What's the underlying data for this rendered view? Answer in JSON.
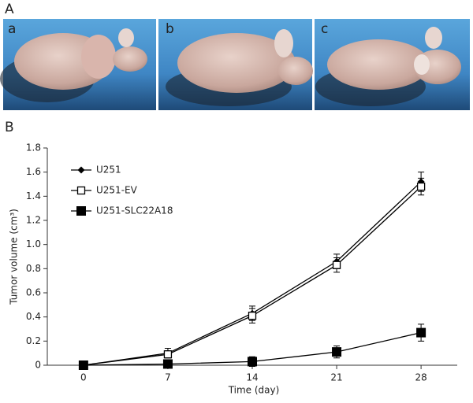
{
  "figure": {
    "panel_a_label": "A",
    "photo_labels": [
      "a",
      "b",
      "c"
    ],
    "panel_b_label": "B"
  },
  "chart_data": {
    "type": "line",
    "x_label": "Time (day)",
    "y_label": "Tumor volume (cm³)",
    "x": [
      0,
      7,
      14,
      21,
      28
    ],
    "xlim": [
      -3,
      31
    ],
    "xticks": [
      0,
      7,
      14,
      21,
      28
    ],
    "ylim": [
      0,
      1.8
    ],
    "yticks": [
      0,
      0.2,
      0.4,
      0.6,
      0.8,
      {
        "value": 1,
        "label": "1.0"
      },
      1.2,
      1.4,
      1.6,
      1.8
    ],
    "legend": "upper left",
    "series": [
      {
        "name": "U251",
        "color": "#000000",
        "marker": "diamond",
        "values": [
          0,
          0.1,
          0.43,
          0.86,
          1.52
        ],
        "errors": [
          0.01,
          0.04,
          0.06,
          0.06,
          0.08
        ]
      },
      {
        "name": "U251-EV",
        "color": "#000000",
        "marker": "square-open",
        "values": [
          0,
          0.09,
          0.41,
          0.83,
          1.48
        ],
        "errors": [
          0.01,
          0.03,
          0.06,
          0.06,
          0.07
        ]
      },
      {
        "name": "U251-SLC22A18",
        "color": "#000000",
        "marker": "square",
        "values": [
          0,
          0.01,
          0.03,
          0.11,
          0.27
        ],
        "errors": [
          0.01,
          0.01,
          0.04,
          0.05,
          0.07
        ]
      }
    ]
  }
}
